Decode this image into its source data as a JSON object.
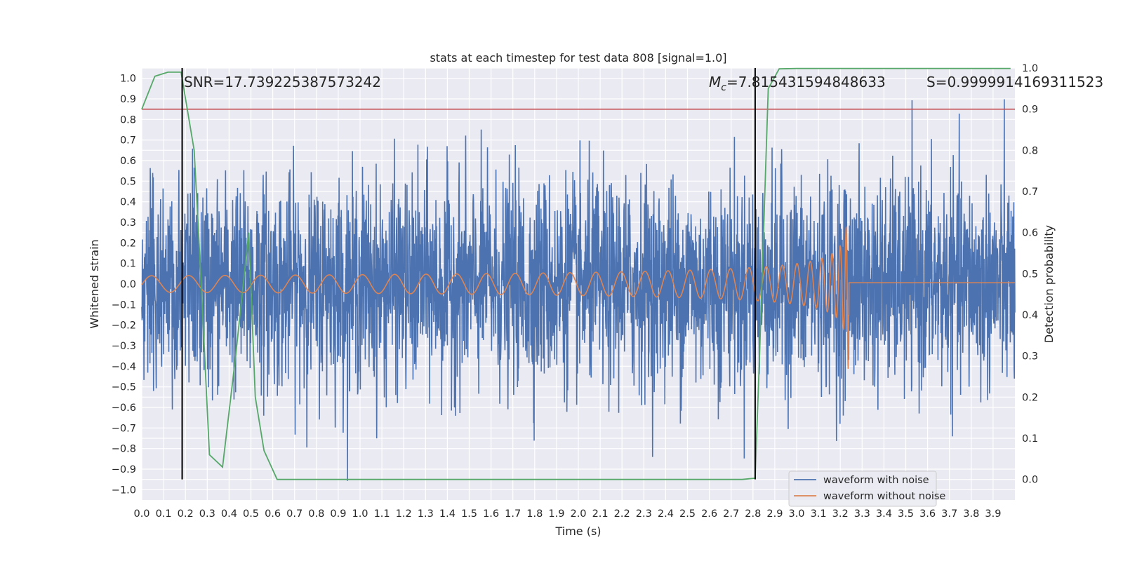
{
  "chart_data": {
    "type": "line",
    "title": "stats at each timestep for test data 808 [signal=1.0]",
    "xlabel": "Time (s)",
    "ylabel": "Whitened strain",
    "y2label": "Detection probability",
    "xlim": [
      0.0,
      4.0
    ],
    "ylim": [
      -1.05,
      1.05
    ],
    "y2lim": [
      -0.05,
      1.0
    ],
    "xticks": [
      "0.0",
      "0.1",
      "0.2",
      "0.3",
      "0.4",
      "0.5",
      "0.6",
      "0.7",
      "0.8",
      "0.9",
      "1.0",
      "1.1",
      "1.2",
      "1.3",
      "1.4",
      "1.5",
      "1.6",
      "1.7",
      "1.8",
      "1.9",
      "2.0",
      "2.1",
      "2.2",
      "2.3",
      "2.4",
      "2.5",
      "2.6",
      "2.7",
      "2.8",
      "2.9",
      "3.0",
      "3.1",
      "3.2",
      "3.3",
      "3.4",
      "3.5",
      "3.6",
      "3.7",
      "3.8",
      "3.9"
    ],
    "yticks": [
      "1.0",
      "0.9",
      "0.8",
      "0.7",
      "0.6",
      "0.5",
      "0.4",
      "0.3",
      "0.2",
      "0.1",
      "0.0",
      "−0.1",
      "−0.2",
      "−0.3",
      "−0.4",
      "−0.5",
      "−0.6",
      "−0.7",
      "−0.8",
      "−0.9",
      "−1.0"
    ],
    "y2ticks": [
      "1.0",
      "0.9",
      "0.8",
      "0.7",
      "0.6",
      "0.5",
      "0.4",
      "0.3",
      "0.2",
      "0.1",
      "0.0"
    ],
    "annotations": {
      "snr": "SNR=17.739225387573242",
      "mc": "M",
      "mc_sub": "c",
      "mc_value": "=7.815431594848633",
      "s": "S=0.9999914169311523"
    },
    "vlines_x": [
      0.185,
      2.81
    ],
    "threshold_y2": 0.9,
    "legend": {
      "position": "lower-right",
      "entries": [
        {
          "label": "waveform with noise",
          "color": "#4c72b0"
        },
        {
          "label": "waveform without noise",
          "color": "#dd8452"
        }
      ]
    },
    "series": [
      {
        "name": "waveform with noise",
        "color": "#4c72b0",
        "description": "noisy whitened strain, roughly std 0.25, range -1.0 to 0.95",
        "noise_std": 0.25,
        "range": [
          -1.0,
          0.95
        ]
      },
      {
        "name": "waveform without noise",
        "color": "#dd8452",
        "description": "chirp signal, amplitude grows from 0.04 to 0.58, merger at t=3.24 s",
        "merger_time": 3.24,
        "amplitude_start": 0.04,
        "amplitude_peak": 0.58
      },
      {
        "name": "detection probability",
        "color": "#55a868",
        "axis": "y2",
        "x": [
          0.0,
          0.06,
          0.12,
          0.18,
          0.24,
          0.27,
          0.31,
          0.37,
          0.43,
          0.49,
          0.52,
          0.56,
          0.62,
          0.68,
          2.75,
          2.81,
          2.83,
          2.87,
          2.92,
          3.0,
          3.5,
          3.98
        ],
        "y": [
          0.9,
          0.98,
          0.99,
          0.99,
          0.8,
          0.5,
          0.06,
          0.03,
          0.3,
          0.6,
          0.2,
          0.07,
          0.0,
          0.0,
          0.0,
          0.003,
          0.3,
          0.95,
          0.998,
          0.999,
          0.999,
          0.999
        ]
      },
      {
        "name": "threshold",
        "color": "#c44e52",
        "axis": "y2",
        "y": 0.9
      }
    ]
  }
}
